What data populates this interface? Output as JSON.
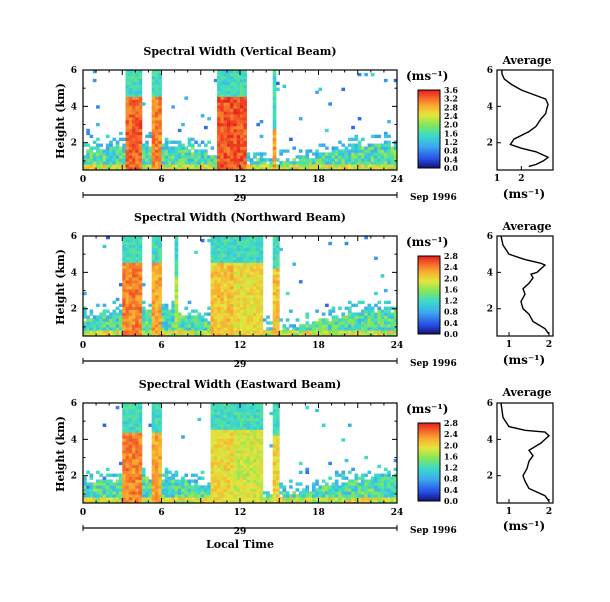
{
  "figure": {
    "x_label": "Local Time",
    "date_label": "Sep 1996",
    "day_label": "29",
    "unit_label": "(ms⁻¹)",
    "average_title": "Average"
  },
  "chart_data": [
    {
      "type": "heatmap",
      "title": "Spectral Width (Vertical Beam)",
      "ylabel": "Height (km)",
      "xlabel": "",
      "xlim": [
        0,
        24
      ],
      "ylim": [
        0.5,
        6
      ],
      "x_ticks": [
        "0",
        "6",
        "12",
        "18",
        "24"
      ],
      "y_ticks": [
        "2",
        "4",
        "6"
      ],
      "colorbar": {
        "range": [
          0,
          3.6
        ],
        "labels": [
          "3.6",
          "3.2",
          "2.8",
          "2.4",
          "2.0",
          "1.6",
          "1.2",
          "0.8",
          "0.4",
          "0.0"
        ]
      },
      "profile": {
        "xlim": [
          1,
          3.3
        ],
        "x_ticks": [
          "1",
          "2"
        ],
        "x": [
          2.3,
          2.6,
          2.9,
          3.1,
          2.6,
          2.0,
          1.55,
          1.7,
          2.3,
          2.6,
          2.8,
          3.0,
          3.05,
          3.1,
          3.0,
          2.6,
          2.0,
          1.6,
          1.3,
          1.2,
          1.2
        ],
        "y": [
          0.7,
          0.8,
          1.0,
          1.2,
          1.5,
          1.7,
          1.9,
          2.2,
          2.6,
          2.9,
          3.3,
          3.6,
          3.9,
          4.1,
          4.4,
          4.6,
          4.9,
          5.2,
          5.5,
          5.8,
          6.0
        ]
      }
    },
    {
      "type": "heatmap",
      "title": "Spectral Width (Northward Beam)",
      "ylabel": "Height (km)",
      "xlabel": "",
      "xlim": [
        0,
        24
      ],
      "ylim": [
        0.5,
        6
      ],
      "x_ticks": [
        "0",
        "6",
        "12",
        "18",
        "24"
      ],
      "y_ticks": [
        "2",
        "4",
        "6"
      ],
      "colorbar": {
        "range": [
          0,
          2.8
        ],
        "labels": [
          "2.8",
          "2.4",
          "2.0",
          "1.6",
          "1.2",
          "0.8",
          "0.4",
          "0.0"
        ]
      },
      "profile": {
        "xlim": [
          0.7,
          2.1
        ],
        "x_ticks": [
          "1",
          "2"
        ],
        "x": [
          2.0,
          1.9,
          1.6,
          1.5,
          1.35,
          1.3,
          1.4,
          1.35,
          1.5,
          1.6,
          1.55,
          1.7,
          1.8,
          1.9,
          1.8,
          1.4,
          1.0,
          0.85,
          0.8
        ],
        "y": [
          0.6,
          0.9,
          1.3,
          1.7,
          2.0,
          2.4,
          2.8,
          3.1,
          3.4,
          3.7,
          3.9,
          4.0,
          4.2,
          4.4,
          4.5,
          4.7,
          5.0,
          5.5,
          6.0
        ]
      }
    },
    {
      "type": "heatmap",
      "title": "Spectral Width (Eastward Beam)",
      "ylabel": "Height (km)",
      "xlabel": "Local Time",
      "xlim": [
        0,
        24
      ],
      "ylim": [
        0.5,
        6
      ],
      "x_ticks": [
        "0",
        "6",
        "12",
        "18",
        "24"
      ],
      "y_ticks": [
        "2",
        "4",
        "6"
      ],
      "colorbar": {
        "range": [
          0,
          2.8
        ],
        "labels": [
          "2.8",
          "2.4",
          "2.0",
          "1.6",
          "1.2",
          "0.8",
          "0.4",
          "0.0"
        ]
      },
      "profile": {
        "xlim": [
          0.7,
          2.1
        ],
        "x_ticks": [
          "1",
          "2"
        ],
        "x": [
          2.0,
          1.9,
          1.5,
          1.4,
          1.35,
          1.45,
          1.5,
          1.6,
          1.5,
          1.65,
          1.8,
          1.9,
          2.0,
          1.9,
          1.4,
          1.0,
          0.85,
          0.8
        ],
        "y": [
          0.6,
          0.9,
          1.3,
          1.7,
          2.0,
          2.4,
          2.8,
          3.1,
          3.4,
          3.6,
          3.8,
          4.0,
          4.2,
          4.4,
          4.5,
          4.7,
          5.2,
          6.0
        ]
      }
    }
  ]
}
